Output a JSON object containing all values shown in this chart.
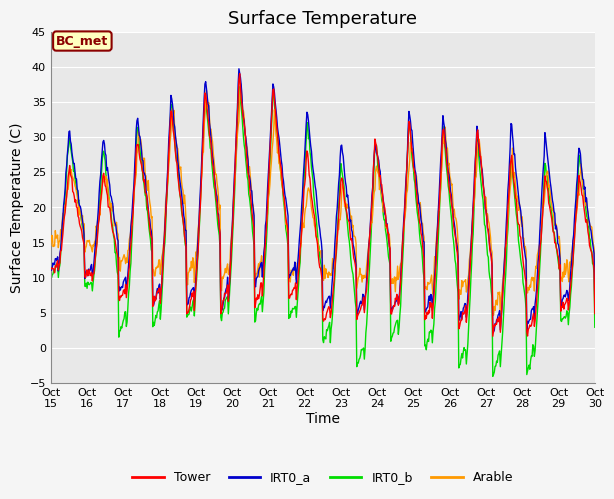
{
  "title": "Surface Temperature",
  "ylabel": "Surface Temperature (C)",
  "xlabel": "Time",
  "ylim": [
    -5,
    45
  ],
  "yticks": [
    -5,
    0,
    5,
    10,
    15,
    20,
    25,
    30,
    35,
    40,
    45
  ],
  "xlim": [
    0,
    360
  ],
  "annotation": "BC_met",
  "legend_labels": [
    "Tower",
    "IRT0_a",
    "IRT0_b",
    "Arable"
  ],
  "line_colors": {
    "Tower": "#ff0000",
    "IRT0_a": "#0000cc",
    "IRT0_b": "#00dd00",
    "Arable": "#ff9900"
  },
  "xtick_labels": [
    "Oct 15",
    "Oct 16",
    "Oct 17",
    "Oct 18",
    "Oct 19",
    "Oct 20",
    "Oct 21",
    "Oct 22",
    "Oct 23",
    "Oct 24",
    "Oct 25",
    "Oct 26",
    "Oct 27",
    "Oct 28",
    "Oct 29",
    "Oct 30"
  ],
  "xtick_positions": [
    0,
    24,
    48,
    72,
    96,
    120,
    144,
    168,
    192,
    216,
    240,
    264,
    288,
    312,
    336,
    360
  ],
  "plot_bg_color": "#e8e8e8",
  "fig_bg_color": "#f5f5f5",
  "grid_color": "#ffffff",
  "title_fontsize": 13,
  "axis_label_fontsize": 10,
  "tick_fontsize": 8,
  "line_width": 1.0
}
